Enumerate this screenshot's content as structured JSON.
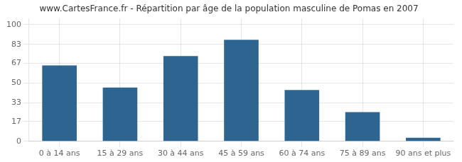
{
  "chart_data": {
    "type": "bar",
    "title": "www.CartesFrance.fr - Répartition par âge de la population masculine de Pomas en 2007",
    "categories": [
      "0 à 14 ans",
      "15 à 29 ans",
      "30 à 44 ans",
      "45 à 59 ans",
      "60 à 74 ans",
      "75 à 89 ans",
      "90 ans et plus"
    ],
    "values": [
      65,
      46,
      73,
      87,
      44,
      25,
      3
    ],
    "color": "#2e6490",
    "ylim": [
      0,
      105
    ],
    "yticks": [
      0,
      17,
      33,
      50,
      67,
      83,
      100
    ],
    "grid": true
  }
}
